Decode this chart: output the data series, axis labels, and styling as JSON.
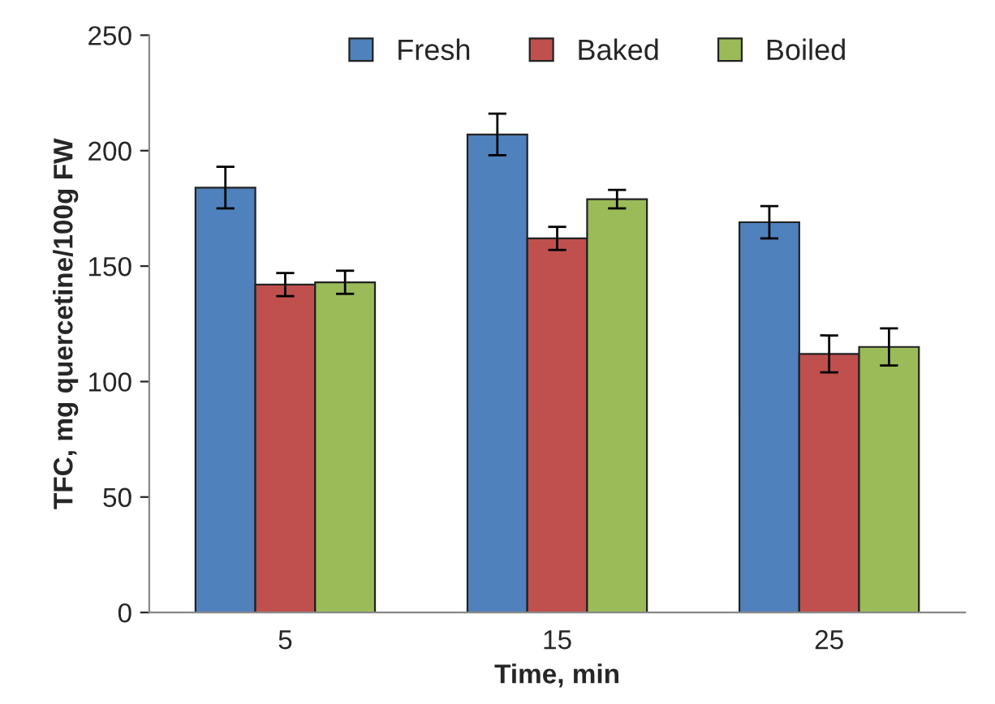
{
  "chart_data": {
    "type": "bar",
    "xlabel": "Time, min",
    "ylabel": "TFC, mg quercetine/100g FW",
    "categories": [
      "5",
      "15",
      "25"
    ],
    "series": [
      {
        "name": "Fresh",
        "color": "#4f81bd",
        "values": [
          184,
          207,
          169
        ],
        "errors": [
          9,
          9,
          7
        ]
      },
      {
        "name": "Baked",
        "color": "#c0504d",
        "values": [
          142,
          162,
          112
        ],
        "errors": [
          5,
          5,
          8
        ]
      },
      {
        "name": "Boiled",
        "color": "#9bbb59",
        "values": [
          143,
          179,
          115
        ],
        "errors": [
          5,
          4,
          8
        ]
      }
    ],
    "ylim": [
      0,
      250
    ],
    "yticks": [
      0,
      50,
      100,
      150,
      200,
      250
    ],
    "grid": false,
    "legend": "top"
  }
}
